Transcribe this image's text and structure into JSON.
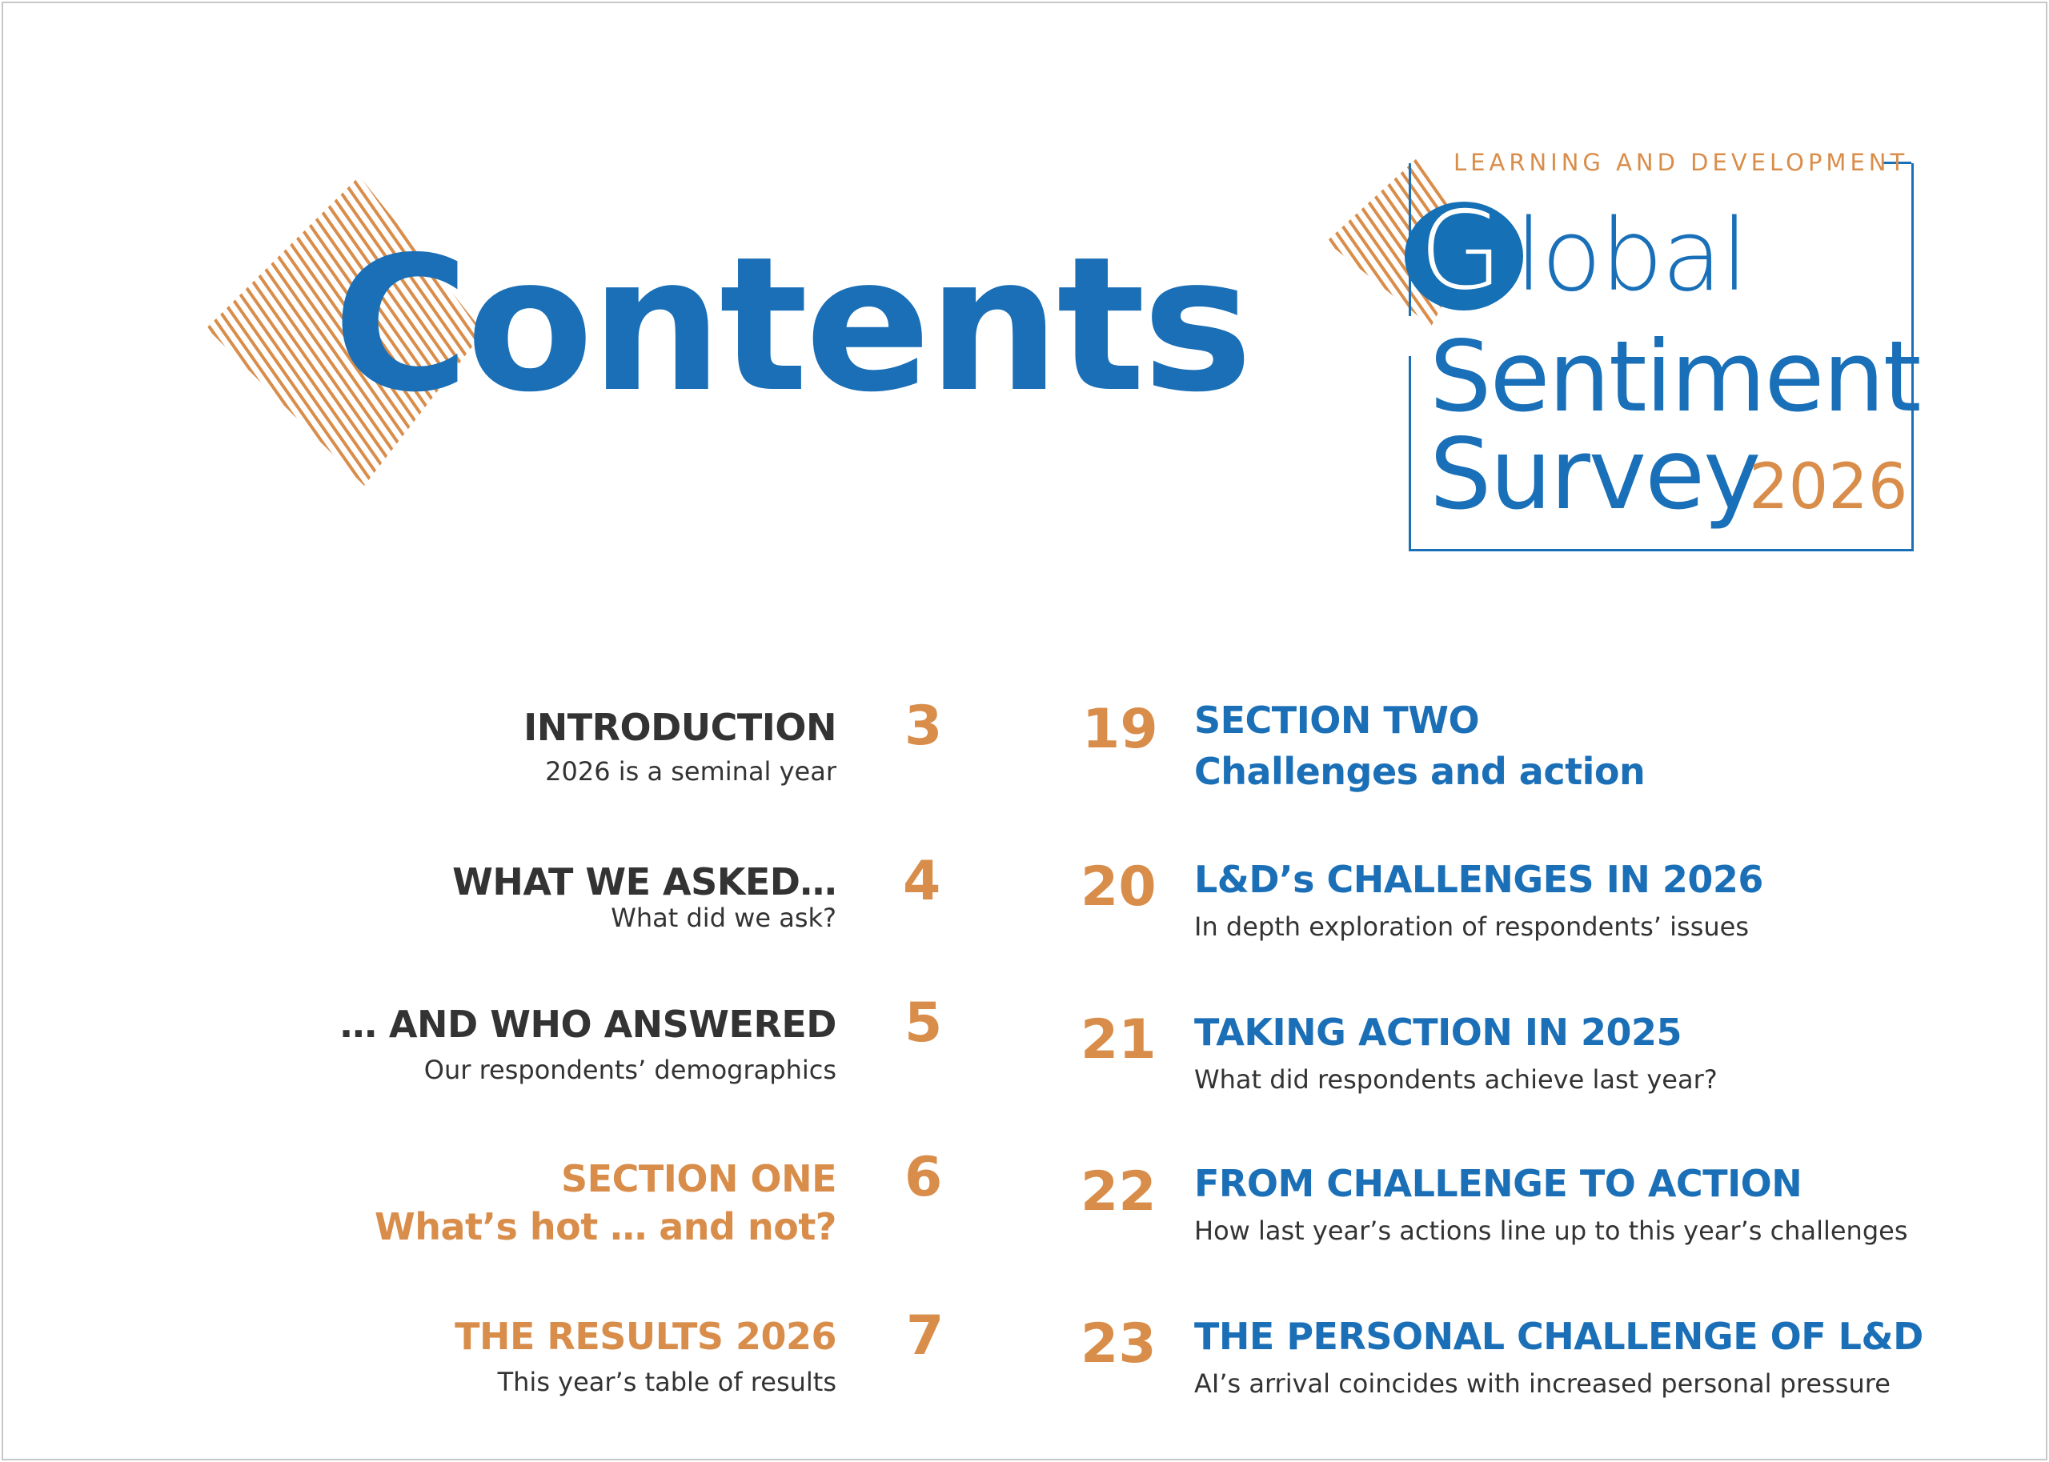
{
  "page_title": "Contents",
  "logo": {
    "label": "LEARNING AND DEVELOPMENT",
    "g": "G",
    "global_rest": "lobal",
    "line2": "Sentiment",
    "line3": "Survey",
    "year": "2026"
  },
  "colors": {
    "blue": "#1a6fb7",
    "orange": "#d98d4a",
    "dark": "#333333"
  },
  "left_entries": [
    {
      "title": "INTRODUCTION",
      "subtitle": "2026 is a seminal year",
      "page": "3",
      "color": "dark"
    },
    {
      "title": "WHAT WE ASKED…",
      "subtitle": "What did we ask?",
      "page": "4",
      "color": "dark"
    },
    {
      "title": "… AND WHO ANSWERED",
      "subtitle": "Our respondents’ demographics",
      "page": "5",
      "color": "dark"
    },
    {
      "title": "SECTION ONE",
      "subtitle": "What’s hot … and not?",
      "page": "6",
      "color": "orange"
    },
    {
      "title": "THE RESULTS 2026",
      "subtitle": "This year’s table of results",
      "page": "7",
      "color": "orange"
    }
  ],
  "right_entries": [
    {
      "title": "SECTION TWO",
      "subtitle": "Challenges and action",
      "page": "19",
      "color": "blue"
    },
    {
      "title": "L&D’s CHALLENGES IN 2026",
      "subtitle": "In depth exploration of respondents’ issues",
      "page": "20",
      "color": "blue"
    },
    {
      "title": "TAKING ACTION IN 2025",
      "subtitle": "What did respondents achieve last year?",
      "page": "21",
      "color": "blue"
    },
    {
      "title": "FROM CHALLENGE TO ACTION",
      "subtitle": "How last year’s actions line up to this year’s challenges",
      "page": "22",
      "color": "blue"
    },
    {
      "title": "THE PERSONAL CHALLENGE OF L&D",
      "subtitle": "AI’s arrival coincides with increased personal pressure",
      "page": "23",
      "color": "blue"
    }
  ]
}
